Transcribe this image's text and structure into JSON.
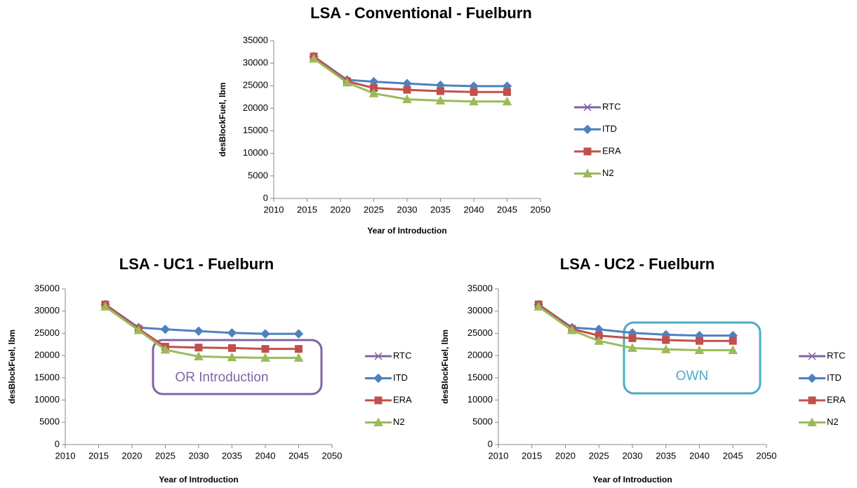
{
  "chart_data": [
    {
      "type": "line",
      "title": "LSA - Conventional - Fuelburn",
      "x_label": "Year of Introduction",
      "y_label": "desBlockFuel, lbm",
      "x": [
        2016,
        2021,
        2025,
        2030,
        2035,
        2040,
        2045
      ],
      "series": [
        {
          "name": "RTC",
          "color": "#8064a2",
          "marker": "x",
          "values": [
            31500,
            null,
            null,
            null,
            null,
            null,
            null
          ]
        },
        {
          "name": "ITD",
          "color": "#4f81bd",
          "marker": "diamond",
          "values": [
            31500,
            26300,
            25900,
            25500,
            25100,
            24900,
            24900
          ]
        },
        {
          "name": "ERA",
          "color": "#c0504d",
          "marker": "square",
          "values": [
            31500,
            26000,
            24500,
            24100,
            23800,
            23600,
            23600
          ]
        },
        {
          "name": "N2",
          "color": "#9bbb59",
          "marker": "triangle",
          "values": [
            31000,
            25700,
            23300,
            22000,
            21700,
            21500,
            21500
          ]
        }
      ],
      "xlim": [
        2010,
        2050
      ],
      "xticks": [
        2010,
        2015,
        2020,
        2025,
        2030,
        2035,
        2040,
        2045,
        2050
      ],
      "ylim": [
        0,
        35000
      ],
      "yticks": [
        0,
        5000,
        10000,
        15000,
        20000,
        25000,
        30000,
        35000
      ],
      "grid": false,
      "legend": "right"
    },
    {
      "type": "line",
      "title": "LSA - UC1 - Fuelburn",
      "x_label": "Year of Introduction",
      "y_label": "desBlockFuel, lbm",
      "annotation": "OR Introduction",
      "x": [
        2016,
        2021,
        2025,
        2030,
        2035,
        2040,
        2045
      ],
      "series": [
        {
          "name": "RTC",
          "color": "#8064a2",
          "marker": "x",
          "values": [
            31500,
            null,
            null,
            null,
            null,
            null,
            null
          ]
        },
        {
          "name": "ITD",
          "color": "#4f81bd",
          "marker": "diamond",
          "values": [
            31500,
            26300,
            25900,
            25500,
            25100,
            24900,
            24900
          ]
        },
        {
          "name": "ERA",
          "color": "#c0504d",
          "marker": "square",
          "values": [
            31500,
            26000,
            22000,
            21800,
            21700,
            21500,
            21500
          ]
        },
        {
          "name": "N2",
          "color": "#9bbb59",
          "marker": "triangle",
          "values": [
            31000,
            25700,
            21300,
            19800,
            19600,
            19500,
            19500
          ]
        }
      ],
      "xlim": [
        2010,
        2050
      ],
      "xticks": [
        2010,
        2015,
        2020,
        2025,
        2030,
        2035,
        2040,
        2045,
        2050
      ],
      "ylim": [
        0,
        35000
      ],
      "yticks": [
        0,
        5000,
        10000,
        15000,
        20000,
        25000,
        30000,
        35000
      ],
      "grid": false,
      "legend": "right"
    },
    {
      "type": "line",
      "title": "LSA - UC2 - Fuelburn",
      "x_label": "Year of Introduction",
      "y_label": "desBlockFuel, lbm",
      "annotation": "OWN",
      "x": [
        2016,
        2021,
        2025,
        2030,
        2035,
        2040,
        2045
      ],
      "series": [
        {
          "name": "RTC",
          "color": "#8064a2",
          "marker": "x",
          "values": [
            31500,
            null,
            null,
            null,
            null,
            null,
            null
          ]
        },
        {
          "name": "ITD",
          "color": "#4f81bd",
          "marker": "diamond",
          "values": [
            31500,
            26300,
            25900,
            25100,
            24700,
            24500,
            24500
          ]
        },
        {
          "name": "ERA",
          "color": "#c0504d",
          "marker": "square",
          "values": [
            31500,
            26000,
            24500,
            23900,
            23500,
            23300,
            23300
          ]
        },
        {
          "name": "N2",
          "color": "#9bbb59",
          "marker": "triangle",
          "values": [
            31000,
            25700,
            23300,
            21700,
            21400,
            21200,
            21200
          ]
        }
      ],
      "xlim": [
        2010,
        2050
      ],
      "xticks": [
        2010,
        2015,
        2020,
        2025,
        2030,
        2035,
        2040,
        2045,
        2050
      ],
      "ylim": [
        0,
        35000
      ],
      "yticks": [
        0,
        5000,
        10000,
        15000,
        20000,
        25000,
        30000,
        35000
      ],
      "grid": false,
      "legend": "right"
    }
  ]
}
